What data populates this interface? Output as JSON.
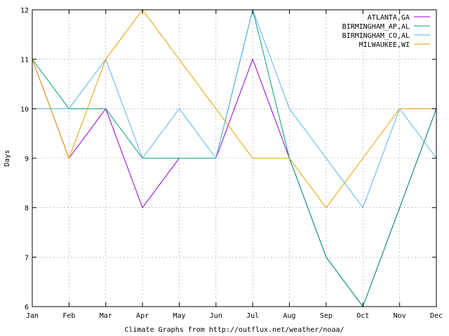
{
  "chart_data": {
    "type": "line",
    "title": "",
    "xlabel": "Climate Graphs from http://outflux.net/weather/noaa/",
    "ylabel": "Days",
    "categories": [
      "Jan",
      "Feb",
      "Mar",
      "Apr",
      "May",
      "Jun",
      "Jul",
      "Aug",
      "Sep",
      "Oct",
      "Nov",
      "Dec"
    ],
    "ylim": [
      6,
      12
    ],
    "yticks": [
      "6",
      "7",
      "8",
      "9",
      "10",
      "11",
      "12"
    ],
    "grid": true,
    "legend_position": "top-right",
    "series": [
      {
        "name": "ATLANTA,GA",
        "color": "#9400d3",
        "values": [
          11,
          9,
          10,
          8,
          9,
          9,
          11,
          9,
          7,
          6,
          8,
          10
        ]
      },
      {
        "name": "BIRMINGHAM_AP,AL",
        "color": "#009e73",
        "values": [
          11,
          10,
          10,
          9,
          9,
          9,
          12,
          9,
          7,
          6,
          8,
          10
        ]
      },
      {
        "name": "BIRMINGHAM_CO,AL",
        "color": "#56b4e9",
        "values": [
          10,
          10,
          11,
          9,
          10,
          9,
          12,
          10,
          9,
          8,
          10,
          9
        ]
      },
      {
        "name": "MILWAUKEE,WI",
        "color": "#e69f00",
        "values": [
          11,
          9,
          11,
          12,
          11,
          10,
          9,
          9,
          8,
          9,
          10,
          10
        ]
      }
    ]
  }
}
